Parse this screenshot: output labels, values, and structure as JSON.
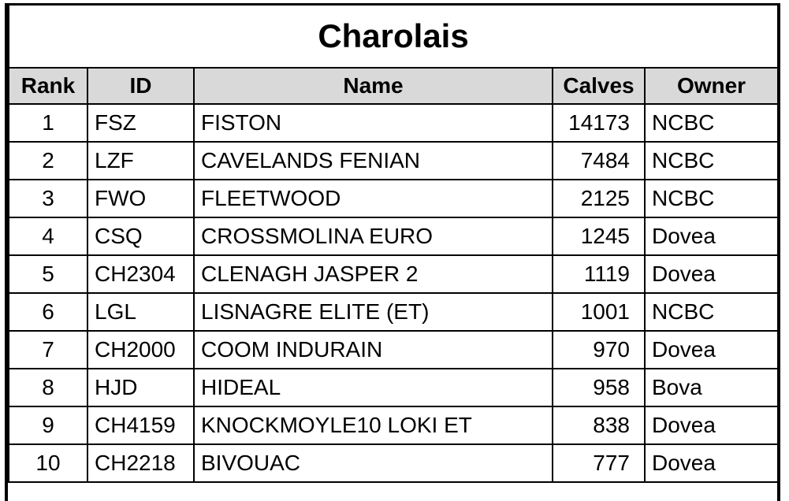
{
  "title": "Charolais",
  "table": {
    "columns": [
      "Rank",
      "ID",
      "Name",
      "Calves",
      "Owner"
    ],
    "rows": [
      [
        1,
        "FSZ",
        "FISTON",
        14173,
        "NCBC"
      ],
      [
        2,
        "LZF",
        "CAVELANDS FENIAN",
        7484,
        "NCBC"
      ],
      [
        3,
        "FWO",
        "FLEETWOOD",
        2125,
        "NCBC"
      ],
      [
        4,
        "CSQ",
        "CROSSMOLINA EURO",
        1245,
        "Dovea"
      ],
      [
        5,
        "CH2304",
        "CLENAGH JASPER 2",
        1119,
        "Dovea"
      ],
      [
        6,
        "LGL",
        "LISNAGRE ELITE (ET)",
        1001,
        "NCBC"
      ],
      [
        7,
        "CH2000",
        "COOM INDURAIN",
        970,
        "Dovea"
      ],
      [
        8,
        "HJD",
        "HIDEAL",
        958,
        "Bova"
      ],
      [
        9,
        "CH4159",
        "KNOCKMOYLE10 LOKI ET",
        838,
        "Dovea"
      ],
      [
        10,
        "CH2218",
        "BIVOUAC",
        777,
        "Dovea"
      ]
    ]
  }
}
